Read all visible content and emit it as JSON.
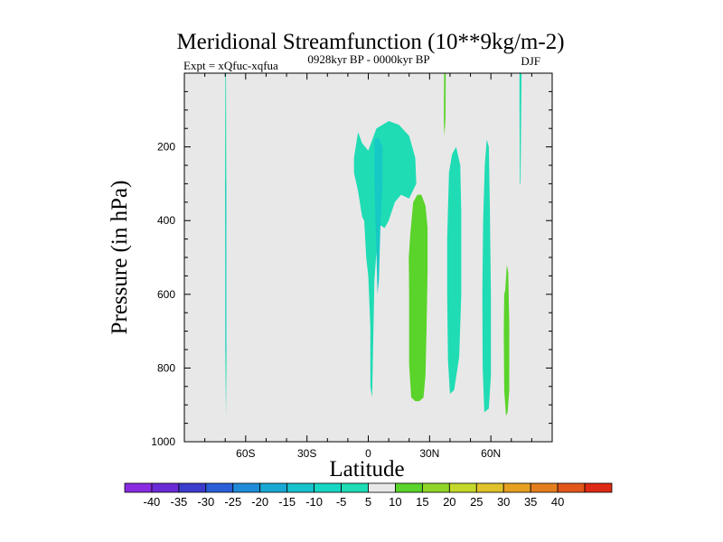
{
  "chart_data": {
    "type": "heatmap",
    "title": "Meridional Streamfunction (10**9kg/m-2)",
    "left_label": "Expt = xQfuc-xqfua",
    "center_label": "0928kyr BP - 0000kyr BP",
    "right_label": "DJF",
    "xlabel": "Latitude",
    "ylabel": "Pressure (in hPa)",
    "xlim": [
      -90,
      90
    ],
    "ylim": [
      1000,
      0
    ],
    "x_ticks": [
      {
        "value": -60,
        "label": "60S"
      },
      {
        "value": -30,
        "label": "30S"
      },
      {
        "value": 0,
        "label": "0"
      },
      {
        "value": 30,
        "label": "30N"
      },
      {
        "value": 60,
        "label": "60N"
      }
    ],
    "y_ticks": [
      {
        "value": 200,
        "label": "200"
      },
      {
        "value": 400,
        "label": "400"
      },
      {
        "value": 600,
        "label": "600"
      },
      {
        "value": 800,
        "label": "800"
      },
      {
        "value": 1000,
        "label": "1000"
      }
    ],
    "background_color": "#e8e8e8",
    "colorbar": {
      "labels": [
        "-40",
        "-35",
        "-30",
        "-25",
        "-20",
        "-15",
        "-10",
        "-5",
        "5",
        "10",
        "15",
        "20",
        "25",
        "30",
        "35",
        "40"
      ],
      "colors": [
        "#8a2be2",
        "#6a2bd6",
        "#3c3ccd",
        "#2a5fd8",
        "#1f8bd8",
        "#18a8d4",
        "#16c2cc",
        "#17d6c4",
        "#1fdcb4",
        "#e8e8e8",
        "#5ad32a",
        "#8fd628",
        "#c3d82a",
        "#e0c22a",
        "#e6a020",
        "#e47e1c",
        "#e2561a",
        "#de2a14"
      ]
    },
    "regions": [
      {
        "name": "sh-high-lat-thin-band",
        "value": -7,
        "color": "#1fdcb4",
        "outline": [
          [
            -69.9,
            0
          ],
          [
            -69.6,
            0
          ],
          [
            -69.5,
            300
          ],
          [
            -69.4,
            780
          ],
          [
            -69.6,
            930
          ],
          [
            -69.9,
            780
          ],
          [
            -70.1,
            300
          ]
        ]
      },
      {
        "name": "sh-high-lat-core",
        "value": -12,
        "color": "#17c9c4",
        "outline": [
          [
            -69.8,
            290
          ],
          [
            -69.5,
            300
          ],
          [
            -69.6,
            760
          ],
          [
            -69.9,
            760
          ]
        ]
      },
      {
        "name": "equatorial-upper-cell",
        "value": -7,
        "color": "#1fdcb4",
        "outline": [
          [
            -7,
            230
          ],
          [
            -5,
            160
          ],
          [
            -3,
            190
          ],
          [
            0,
            210
          ],
          [
            4,
            150
          ],
          [
            10,
            130
          ],
          [
            15,
            140
          ],
          [
            20,
            170
          ],
          [
            23,
            230
          ],
          [
            23.5,
            300
          ],
          [
            20,
            340
          ],
          [
            16,
            330
          ],
          [
            13,
            350
          ],
          [
            10,
            400
          ],
          [
            8,
            420
          ],
          [
            5,
            410
          ],
          [
            3,
            560
          ],
          [
            2.5,
            700
          ],
          [
            2,
            850
          ],
          [
            1.8,
            880
          ],
          [
            1,
            850
          ],
          [
            1,
            690
          ],
          [
            0,
            550
          ],
          [
            -1,
            500
          ],
          [
            -2,
            400
          ],
          [
            -3,
            390
          ],
          [
            -5,
            320
          ],
          [
            -7,
            270
          ]
        ]
      },
      {
        "name": "equatorial-core",
        "value": -12,
        "color": "#17c9c4",
        "outline": [
          [
            3,
            180
          ],
          [
            5,
            175
          ],
          [
            7,
            200
          ],
          [
            7,
            300
          ],
          [
            6,
            400
          ],
          [
            5.2,
            560
          ],
          [
            4.5,
            600
          ],
          [
            4,
            480
          ],
          [
            3.4,
            380
          ],
          [
            3,
            290
          ]
        ]
      },
      {
        "name": "nh-subtropic-positive-cell",
        "value": 7,
        "color": "#5ad32a",
        "outline": [
          [
            20.5,
            440
          ],
          [
            22,
            350
          ],
          [
            24,
            330
          ],
          [
            26,
            330
          ],
          [
            28,
            360
          ],
          [
            29,
            420
          ],
          [
            29,
            540
          ],
          [
            28.5,
            700
          ],
          [
            28,
            820
          ],
          [
            27,
            880
          ],
          [
            25,
            890
          ],
          [
            23,
            890
          ],
          [
            21,
            880
          ],
          [
            20,
            790
          ],
          [
            20,
            600
          ],
          [
            19.8,
            500
          ]
        ]
      },
      {
        "name": "nh-midlat-negative-cell-a",
        "value": -7,
        "color": "#1fdcb4",
        "outline": [
          [
            39.5,
            270
          ],
          [
            41,
            220
          ],
          [
            43,
            200
          ],
          [
            45,
            250
          ],
          [
            45.5,
            380
          ],
          [
            45.5,
            600
          ],
          [
            44.5,
            770
          ],
          [
            42,
            860
          ],
          [
            40,
            870
          ],
          [
            39,
            780
          ],
          [
            38.6,
            600
          ],
          [
            38.6,
            450
          ]
        ]
      },
      {
        "name": "nh-midlat-negative-cell-b",
        "value": -7,
        "color": "#1fdcb4",
        "outline": [
          [
            57,
            250
          ],
          [
            58,
            180
          ],
          [
            59,
            200
          ],
          [
            59.5,
            360
          ],
          [
            60,
            600
          ],
          [
            60,
            820
          ],
          [
            59,
            910
          ],
          [
            56.8,
            920
          ],
          [
            56,
            800
          ],
          [
            55.8,
            600
          ],
          [
            56.2,
            400
          ]
        ]
      },
      {
        "name": "nh-high-lat-positive-cell",
        "value": 7,
        "color": "#5ad32a",
        "outline": [
          [
            67,
            590
          ],
          [
            67.8,
            520
          ],
          [
            68.5,
            540
          ],
          [
            69,
            680
          ],
          [
            69,
            860
          ],
          [
            68.2,
            920
          ],
          [
            67.4,
            930
          ],
          [
            66.5,
            860
          ],
          [
            66.3,
            700
          ],
          [
            66.5,
            600
          ]
        ]
      },
      {
        "name": "nh-upper-thin-positive",
        "value": 7,
        "color": "#5ad32a",
        "outline": [
          [
            37.1,
            0
          ],
          [
            37.9,
            0
          ],
          [
            37.8,
            120
          ],
          [
            37.5,
            150
          ],
          [
            37.3,
            170
          ],
          [
            37,
            140
          ],
          [
            37,
            80
          ]
        ]
      },
      {
        "name": "nh-upper-thin-negative",
        "value": -7,
        "color": "#1fdcb4",
        "outline": [
          [
            74,
            0
          ],
          [
            75,
            0
          ],
          [
            74.8,
            120
          ],
          [
            74.6,
            240
          ],
          [
            74.5,
            300
          ],
          [
            74.2,
            300
          ],
          [
            74.1,
            180
          ],
          [
            74,
            80
          ]
        ]
      }
    ]
  }
}
